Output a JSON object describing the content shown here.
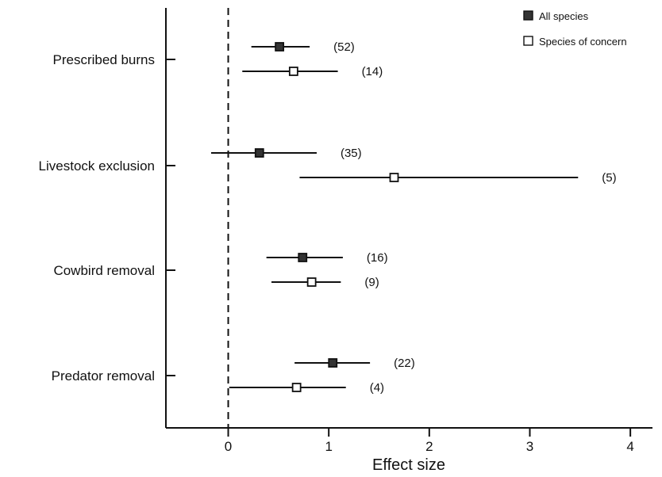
{
  "chart_data": {
    "type": "forest",
    "title": "",
    "xlabel": "Effect size",
    "ylabel": "",
    "xlim": [
      -0.62,
      4.22
    ],
    "xticks": [
      "0",
      "1",
      "2",
      "3",
      "4"
    ],
    "reference_line": 0,
    "legend": {
      "placement": "top-right",
      "entries": [
        {
          "label": "All species",
          "marker": "filled-square",
          "color": "#333333"
        },
        {
          "label": "Species of concern",
          "marker": "open-square",
          "color": "#ffffff"
        }
      ]
    },
    "categories": [
      {
        "label": "Prescribed burns",
        "rows": [
          {
            "series": "All species",
            "estimate": 0.51,
            "ci": [
              0.23,
              0.81
            ],
            "n_label": "(52)"
          },
          {
            "series": "Species of concern",
            "estimate": 0.65,
            "ci": [
              0.14,
              1.09
            ],
            "n_label": "(14)"
          }
        ]
      },
      {
        "label": "Livestock exclusion",
        "rows": [
          {
            "series": "All species",
            "estimate": 0.31,
            "ci": [
              -0.17,
              0.88
            ],
            "n_label": "(35)"
          },
          {
            "series": "Species of concern",
            "estimate": 1.65,
            "ci": [
              0.71,
              3.48
            ],
            "n_label": "(5)"
          }
        ]
      },
      {
        "label": "Cowbird removal",
        "rows": [
          {
            "series": "All species",
            "estimate": 0.74,
            "ci": [
              0.38,
              1.14
            ],
            "n_label": "(16)"
          },
          {
            "series": "Species of concern",
            "estimate": 0.83,
            "ci": [
              0.43,
              1.12
            ],
            "n_label": "(9)"
          }
        ]
      },
      {
        "label": "Predator removal",
        "rows": [
          {
            "series": "All species",
            "estimate": 1.04,
            "ci": [
              0.66,
              1.41
            ],
            "n_label": "(22)"
          },
          {
            "series": "Species of concern",
            "estimate": 0.68,
            "ci": [
              0.01,
              1.17
            ],
            "n_label": "(4)"
          }
        ]
      }
    ]
  }
}
